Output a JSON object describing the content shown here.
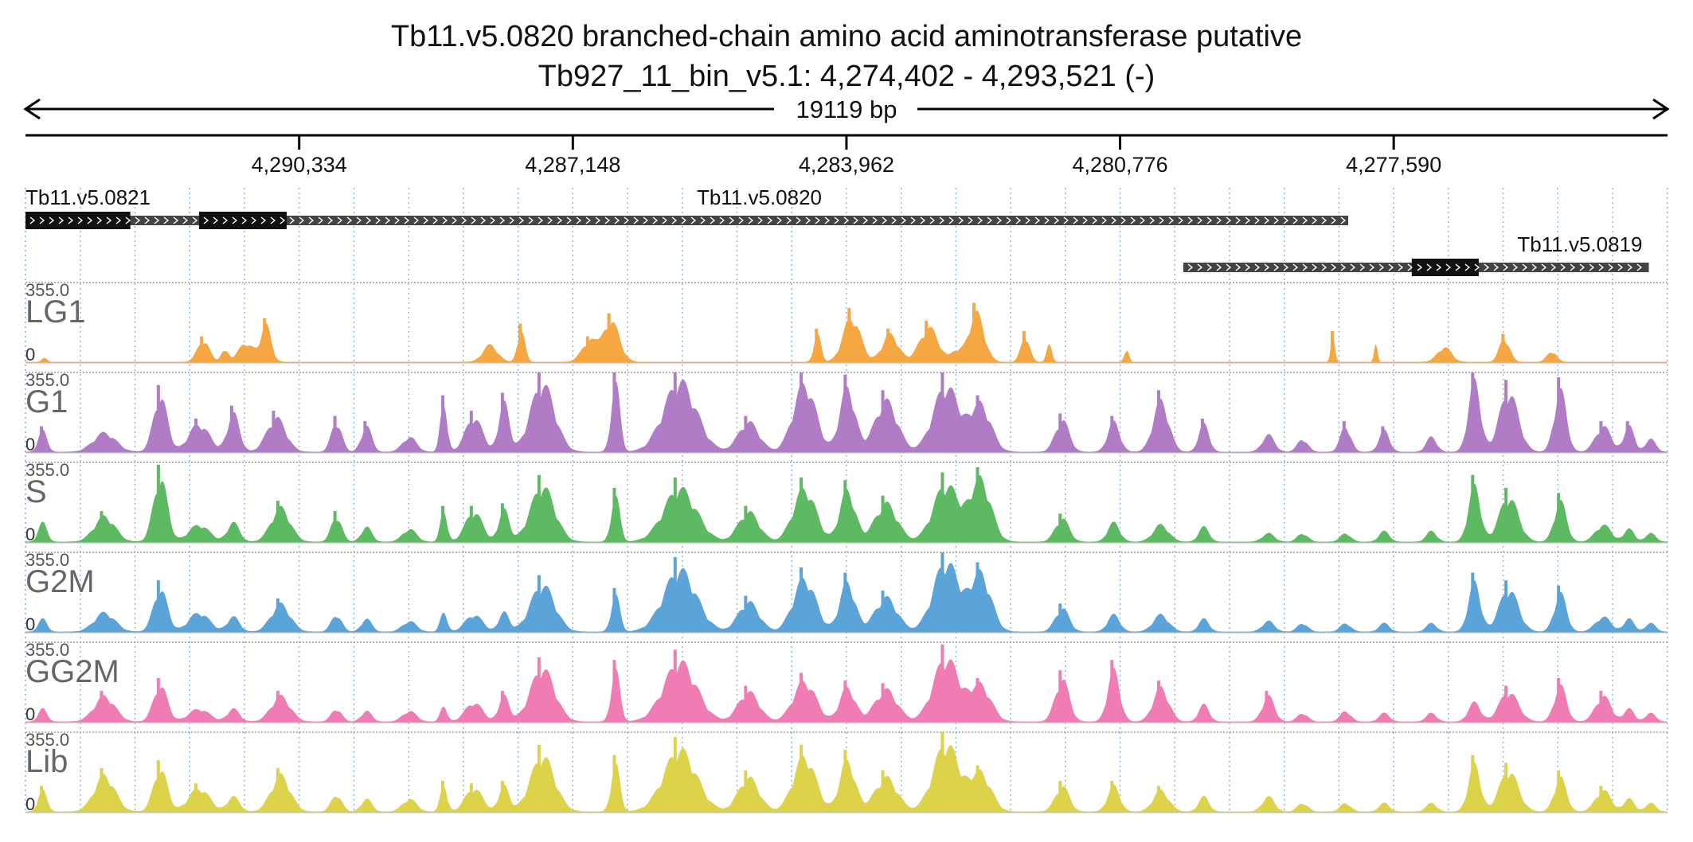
{
  "chart_data": {
    "type": "area",
    "title": "Tb11.v5.0820  branched-chain amino acid aminotransferase  putative",
    "subtitle": "Tb927_11_bin_v5.1: 4,274,402 - 4,293,521 (-)",
    "span_label": "19119 bp",
    "region": {
      "chrom": "Tb927_11_bin_v5.1",
      "start": 4274402,
      "end": 4293521,
      "strand": "-"
    },
    "x_axis": {
      "reversed": true,
      "tick_values": [
        4290334,
        4287148,
        4283962,
        4280776,
        4277590
      ],
      "tick_labels": [
        "4,290,334",
        "4,287,148",
        "4,283,962",
        "4,280,776",
        "4,277,590"
      ]
    },
    "genes": [
      {
        "name": "Tb11.v5.0821",
        "utr": [
          4288800,
          4293521
        ],
        "cds": [
          4292300,
          4293521
        ],
        "row": 0,
        "label_anchor": "left"
      },
      {
        "name": "Tb11.v5.0820",
        "utr": [
          4278120,
          4291500
        ],
        "cds": [
          4290480,
          4291500
        ],
        "row": 0,
        "label_anchor": "center"
      },
      {
        "name": "Tb11.v5.0819",
        "utr": [
          4274620,
          4280040
        ],
        "cds": [
          4276600,
          4277380
        ],
        "row": 1,
        "label_anchor": "right"
      }
    ],
    "tracks": [
      {
        "name": "LG1",
        "color": "#F5A742",
        "ymin": 0,
        "ymax": "355.0",
        "peaks": [
          [
            4293300,
            22,
            28
          ],
          [
            4291450,
            100,
            70
          ],
          [
            4291200,
            60,
            40
          ],
          [
            4290950,
            90,
            90
          ],
          [
            4290720,
            170,
            60
          ],
          [
            4288110,
            80,
            85
          ],
          [
            4287750,
            150,
            42
          ],
          [
            4286950,
            100,
            90
          ],
          [
            4286700,
            190,
            95
          ],
          [
            4284300,
            130,
            40
          ],
          [
            4283900,
            210,
            100
          ],
          [
            4283450,
            130,
            95
          ],
          [
            4283000,
            160,
            110
          ],
          [
            4282680,
            50,
            60
          ],
          [
            4282450,
            230,
            90
          ],
          [
            4281880,
            120,
            50
          ],
          [
            4281600,
            80,
            30
          ],
          [
            4280700,
            60,
            25
          ],
          [
            4278300,
            120,
            22
          ],
          [
            4277800,
            90,
            18
          ],
          [
            4277000,
            70,
            80
          ],
          [
            4276300,
            110,
            60
          ],
          [
            4275750,
            50,
            55
          ]
        ]
      },
      {
        "name": "G1",
        "color": "#B07CC6",
        "ymin": 0,
        "ymax": "355.0",
        "peaks": [
          [
            4293320,
            100,
            50
          ],
          [
            4292600,
            90,
            130
          ],
          [
            4291950,
            260,
            80
          ],
          [
            4291500,
            130,
            120
          ],
          [
            4291100,
            180,
            70
          ],
          [
            4290600,
            160,
            110
          ],
          [
            4289900,
            140,
            60
          ],
          [
            4289550,
            120,
            60
          ],
          [
            4289050,
            70,
            80
          ],
          [
            4288650,
            220,
            40
          ],
          [
            4288300,
            160,
            100
          ],
          [
            4287950,
            230,
            60
          ],
          [
            4287500,
            320,
            140
          ],
          [
            4286650,
            320,
            50
          ],
          [
            4285900,
            330,
            190
          ],
          [
            4285100,
            140,
            120
          ],
          [
            4284450,
            320,
            130
          ],
          [
            4283950,
            300,
            90
          ],
          [
            4283500,
            240,
            130
          ],
          [
            4282800,
            310,
            150
          ],
          [
            4282400,
            220,
            120
          ],
          [
            4281450,
            150,
            80
          ],
          [
            4280850,
            140,
            70
          ],
          [
            4280300,
            240,
            90
          ],
          [
            4279800,
            130,
            60
          ],
          [
            4279050,
            80,
            70
          ],
          [
            4278650,
            60,
            60
          ],
          [
            4278150,
            120,
            60
          ],
          [
            4277700,
            100,
            60
          ],
          [
            4277150,
            70,
            60
          ],
          [
            4276650,
            330,
            70
          ],
          [
            4276250,
            280,
            110
          ],
          [
            4275650,
            290,
            70
          ],
          [
            4275150,
            120,
            90
          ],
          [
            4274850,
            120,
            60
          ],
          [
            4274600,
            60,
            60
          ]
        ]
      },
      {
        "name": "S",
        "color": "#5DBA63",
        "ymin": 0,
        "ymax": "355.0",
        "peaks": [
          [
            4293320,
            90,
            50
          ],
          [
            4292600,
            120,
            120
          ],
          [
            4291950,
            300,
            80
          ],
          [
            4291500,
            80,
            120
          ],
          [
            4291100,
            90,
            70
          ],
          [
            4290550,
            160,
            110
          ],
          [
            4289900,
            120,
            60
          ],
          [
            4289550,
            70,
            60
          ],
          [
            4289050,
            60,
            80
          ],
          [
            4288650,
            140,
            40
          ],
          [
            4288300,
            140,
            100
          ],
          [
            4287950,
            150,
            60
          ],
          [
            4287500,
            260,
            140
          ],
          [
            4286650,
            210,
            50
          ],
          [
            4285900,
            250,
            190
          ],
          [
            4285100,
            140,
            120
          ],
          [
            4284450,
            250,
            130
          ],
          [
            4283950,
            240,
            90
          ],
          [
            4283500,
            180,
            130
          ],
          [
            4282800,
            270,
            150
          ],
          [
            4282400,
            290,
            120
          ],
          [
            4281450,
            110,
            80
          ],
          [
            4280850,
            90,
            70
          ],
          [
            4280300,
            80,
            90
          ],
          [
            4279800,
            70,
            60
          ],
          [
            4279050,
            40,
            70
          ],
          [
            4278650,
            40,
            60
          ],
          [
            4278150,
            40,
            60
          ],
          [
            4277700,
            50,
            60
          ],
          [
            4277150,
            50,
            60
          ],
          [
            4276650,
            260,
            70
          ],
          [
            4276250,
            210,
            110
          ],
          [
            4275650,
            190,
            70
          ],
          [
            4275150,
            80,
            90
          ],
          [
            4274850,
            60,
            60
          ],
          [
            4274600,
            40,
            60
          ]
        ]
      },
      {
        "name": "G2M",
        "color": "#5AA4DA",
        "ymin": 0,
        "ymax": "355.0",
        "peaks": [
          [
            4293320,
            60,
            50
          ],
          [
            4292600,
            90,
            120
          ],
          [
            4291950,
            200,
            80
          ],
          [
            4291500,
            90,
            120
          ],
          [
            4291100,
            70,
            70
          ],
          [
            4290550,
            130,
            110
          ],
          [
            4289900,
            80,
            60
          ],
          [
            4289550,
            60,
            60
          ],
          [
            4289050,
            50,
            80
          ],
          [
            4288650,
            90,
            40
          ],
          [
            4288300,
            80,
            100
          ],
          [
            4287950,
            90,
            60
          ],
          [
            4287500,
            220,
            140
          ],
          [
            4286650,
            170,
            50
          ],
          [
            4285900,
            290,
            190
          ],
          [
            4285100,
            140,
            120
          ],
          [
            4284450,
            250,
            130
          ],
          [
            4283950,
            230,
            90
          ],
          [
            4283500,
            160,
            130
          ],
          [
            4282800,
            330,
            150
          ],
          [
            4282400,
            270,
            120
          ],
          [
            4281450,
            110,
            80
          ],
          [
            4280850,
            80,
            70
          ],
          [
            4280300,
            80,
            90
          ],
          [
            4279800,
            60,
            60
          ],
          [
            4279050,
            50,
            70
          ],
          [
            4278650,
            40,
            60
          ],
          [
            4278150,
            40,
            60
          ],
          [
            4277700,
            40,
            60
          ],
          [
            4277150,
            40,
            60
          ],
          [
            4276650,
            230,
            70
          ],
          [
            4276250,
            200,
            110
          ],
          [
            4275650,
            180,
            70
          ],
          [
            4275150,
            70,
            90
          ],
          [
            4274850,
            60,
            60
          ],
          [
            4274600,
            40,
            60
          ]
        ]
      },
      {
        "name": "GG2M",
        "color": "#F07CB4",
        "ymin": 0,
        "ymax": "355.0",
        "peaks": [
          [
            4293320,
            60,
            50
          ],
          [
            4292600,
            120,
            120
          ],
          [
            4291950,
            170,
            80
          ],
          [
            4291500,
            60,
            120
          ],
          [
            4291100,
            60,
            70
          ],
          [
            4290550,
            120,
            110
          ],
          [
            4289900,
            60,
            60
          ],
          [
            4289550,
            50,
            60
          ],
          [
            4289050,
            50,
            80
          ],
          [
            4288650,
            70,
            40
          ],
          [
            4288300,
            90,
            100
          ],
          [
            4287950,
            120,
            60
          ],
          [
            4287500,
            250,
            140
          ],
          [
            4286650,
            240,
            50
          ],
          [
            4285900,
            280,
            190
          ],
          [
            4285100,
            140,
            120
          ],
          [
            4284450,
            190,
            130
          ],
          [
            4283950,
            160,
            90
          ],
          [
            4283500,
            150,
            130
          ],
          [
            4282800,
            300,
            150
          ],
          [
            4282400,
            170,
            120
          ],
          [
            4281450,
            200,
            80
          ],
          [
            4280850,
            240,
            70
          ],
          [
            4280300,
            160,
            90
          ],
          [
            4279800,
            80,
            60
          ],
          [
            4279050,
            120,
            70
          ],
          [
            4278650,
            40,
            60
          ],
          [
            4278150,
            50,
            60
          ],
          [
            4277700,
            40,
            60
          ],
          [
            4277150,
            40,
            60
          ],
          [
            4276650,
            90,
            70
          ],
          [
            4276250,
            140,
            110
          ],
          [
            4275650,
            170,
            70
          ],
          [
            4275150,
            120,
            90
          ],
          [
            4274850,
            60,
            60
          ],
          [
            4274600,
            40,
            60
          ]
        ]
      },
      {
        "name": "Lib",
        "color": "#DCD34A",
        "ymin": 0,
        "ymax": "355.0",
        "peaks": [
          [
            4293320,
            100,
            50
          ],
          [
            4292600,
            170,
            120
          ],
          [
            4291950,
            200,
            80
          ],
          [
            4291500,
            110,
            120
          ],
          [
            4291100,
            70,
            70
          ],
          [
            4290550,
            170,
            110
          ],
          [
            4289900,
            80,
            60
          ],
          [
            4289550,
            60,
            60
          ],
          [
            4289050,
            60,
            80
          ],
          [
            4288650,
            120,
            40
          ],
          [
            4288300,
            110,
            100
          ],
          [
            4287950,
            120,
            60
          ],
          [
            4287500,
            260,
            140
          ],
          [
            4286650,
            220,
            50
          ],
          [
            4285900,
            290,
            190
          ],
          [
            4285100,
            160,
            120
          ],
          [
            4284450,
            260,
            130
          ],
          [
            4283950,
            240,
            90
          ],
          [
            4283500,
            160,
            130
          ],
          [
            4282800,
            320,
            150
          ],
          [
            4282400,
            180,
            120
          ],
          [
            4281450,
            120,
            80
          ],
          [
            4280850,
            120,
            70
          ],
          [
            4280300,
            100,
            90
          ],
          [
            4279800,
            70,
            60
          ],
          [
            4279050,
            70,
            70
          ],
          [
            4278650,
            40,
            60
          ],
          [
            4278150,
            40,
            60
          ],
          [
            4277700,
            40,
            60
          ],
          [
            4277150,
            40,
            60
          ],
          [
            4276650,
            220,
            70
          ],
          [
            4276250,
            190,
            110
          ],
          [
            4275650,
            160,
            70
          ],
          [
            4275150,
            100,
            90
          ],
          [
            4274850,
            60,
            60
          ],
          [
            4274600,
            40,
            60
          ]
        ]
      }
    ]
  }
}
